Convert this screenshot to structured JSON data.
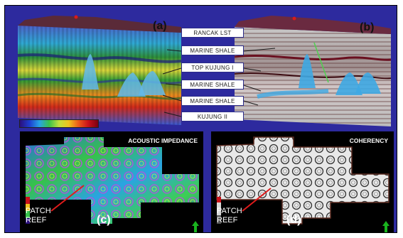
{
  "panels": {
    "a": {
      "label": "(a)"
    },
    "b": {
      "label": "(b)"
    },
    "c": {
      "label": "(c)",
      "title": "ACOUSTIC IMPEDANCE",
      "patch_reef": [
        "PATCH",
        "REEF"
      ]
    },
    "d": {
      "label": "(d)",
      "title": "COHERENCY",
      "patch_reef": [
        "PATCH",
        "REEF"
      ]
    }
  },
  "horizons": [
    "RANCAK LST",
    "MARINE SHALE",
    "TOP KUJUNG I",
    "MARINE SHALE",
    "MARINE SHALE",
    "KUJUNG II"
  ],
  "colors": {
    "frame": "#2d2a9e",
    "label_border": "#2b2b88",
    "arrow": "#e01b1b",
    "north_arrow": "#19b31e",
    "reef_blue": "#3ea9e3"
  },
  "icons": [
    "north-arrow-icon",
    "pointer-arrow-icon"
  ]
}
